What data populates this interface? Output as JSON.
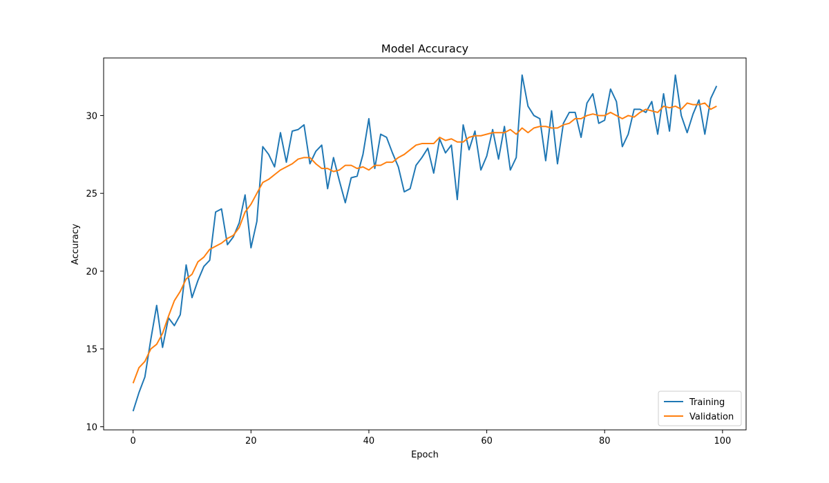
{
  "chart_data": {
    "type": "line",
    "title": "Model Accuracy",
    "xlabel": "Epoch",
    "ylabel": "Accuracy",
    "xlim": [
      -5,
      104
    ],
    "ylim": [
      9.8,
      33.7
    ],
    "xticks": [
      0,
      20,
      40,
      60,
      80,
      100
    ],
    "yticks": [
      10,
      15,
      20,
      25,
      30
    ],
    "grid": false,
    "legend_position": "lower-right",
    "x": [
      0,
      1,
      2,
      3,
      4,
      5,
      6,
      7,
      8,
      9,
      10,
      11,
      12,
      13,
      14,
      15,
      16,
      17,
      18,
      19,
      20,
      21,
      22,
      23,
      24,
      25,
      26,
      27,
      28,
      29,
      30,
      31,
      32,
      33,
      34,
      35,
      36,
      37,
      38,
      39,
      40,
      41,
      42,
      43,
      44,
      45,
      46,
      47,
      48,
      49,
      50,
      51,
      52,
      53,
      54,
      55,
      56,
      57,
      58,
      59,
      60,
      61,
      62,
      63,
      64,
      65,
      66,
      67,
      68,
      69,
      70,
      71,
      72,
      73,
      74,
      75,
      76,
      77,
      78,
      79,
      80,
      81,
      82,
      83,
      84,
      85,
      86,
      87,
      88,
      89,
      90,
      91,
      92,
      93,
      94,
      95,
      96,
      97,
      98,
      99
    ],
    "series": [
      {
        "name": "Training",
        "color": "#1f77b4",
        "values": [
          11.0,
          12.2,
          13.2,
          15.6,
          17.8,
          15.1,
          17.0,
          16.5,
          17.2,
          20.4,
          18.3,
          19.4,
          20.3,
          20.7,
          23.8,
          24.0,
          21.7,
          22.2,
          23.1,
          24.9,
          21.5,
          23.2,
          28.0,
          27.5,
          26.7,
          28.9,
          27.0,
          29.0,
          29.1,
          29.4,
          26.9,
          27.7,
          28.1,
          25.3,
          27.3,
          25.8,
          24.4,
          26.0,
          26.1,
          27.5,
          29.8,
          26.6,
          28.8,
          28.6,
          27.6,
          26.7,
          25.1,
          25.3,
          26.8,
          27.3,
          27.9,
          26.3,
          28.5,
          27.6,
          28.1,
          24.6,
          29.4,
          27.8,
          29.0,
          26.5,
          27.4,
          29.1,
          27.2,
          29.3,
          26.5,
          27.3,
          32.6,
          30.6,
          30.0,
          29.8,
          27.1,
          30.3,
          26.9,
          29.5,
          30.2,
          30.2,
          28.6,
          30.8,
          31.4,
          29.5,
          29.7,
          31.7,
          30.9,
          28.0,
          28.8,
          30.4,
          30.4,
          30.2,
          30.9,
          28.8,
          31.4,
          29.0,
          32.6,
          30.0,
          28.9,
          30.1,
          31.0,
          28.8,
          31.1,
          31.9
        ]
      },
      {
        "name": "Validation",
        "color": "#ff7f0e",
        "values": [
          12.8,
          13.8,
          14.2,
          15.0,
          15.3,
          16.0,
          17.1,
          18.1,
          18.7,
          19.5,
          19.8,
          20.6,
          20.9,
          21.4,
          21.6,
          21.8,
          22.1,
          22.3,
          22.8,
          23.8,
          24.3,
          25.0,
          25.7,
          25.9,
          26.2,
          26.5,
          26.7,
          26.9,
          27.2,
          27.3,
          27.3,
          26.9,
          26.6,
          26.6,
          26.4,
          26.5,
          26.8,
          26.8,
          26.6,
          26.7,
          26.5,
          26.8,
          26.8,
          27.0,
          27.0,
          27.3,
          27.5,
          27.8,
          28.1,
          28.2,
          28.2,
          28.2,
          28.6,
          28.4,
          28.5,
          28.3,
          28.3,
          28.6,
          28.7,
          28.7,
          28.8,
          28.9,
          28.9,
          28.9,
          29.1,
          28.8,
          29.2,
          28.9,
          29.2,
          29.3,
          29.3,
          29.2,
          29.2,
          29.4,
          29.5,
          29.8,
          29.8,
          30.0,
          30.1,
          30.0,
          30.0,
          30.2,
          30.0,
          29.8,
          30.0,
          29.9,
          30.2,
          30.4,
          30.3,
          30.2,
          30.6,
          30.5,
          30.6,
          30.4,
          30.8,
          30.7,
          30.7,
          30.8,
          30.4,
          30.6
        ]
      }
    ]
  }
}
